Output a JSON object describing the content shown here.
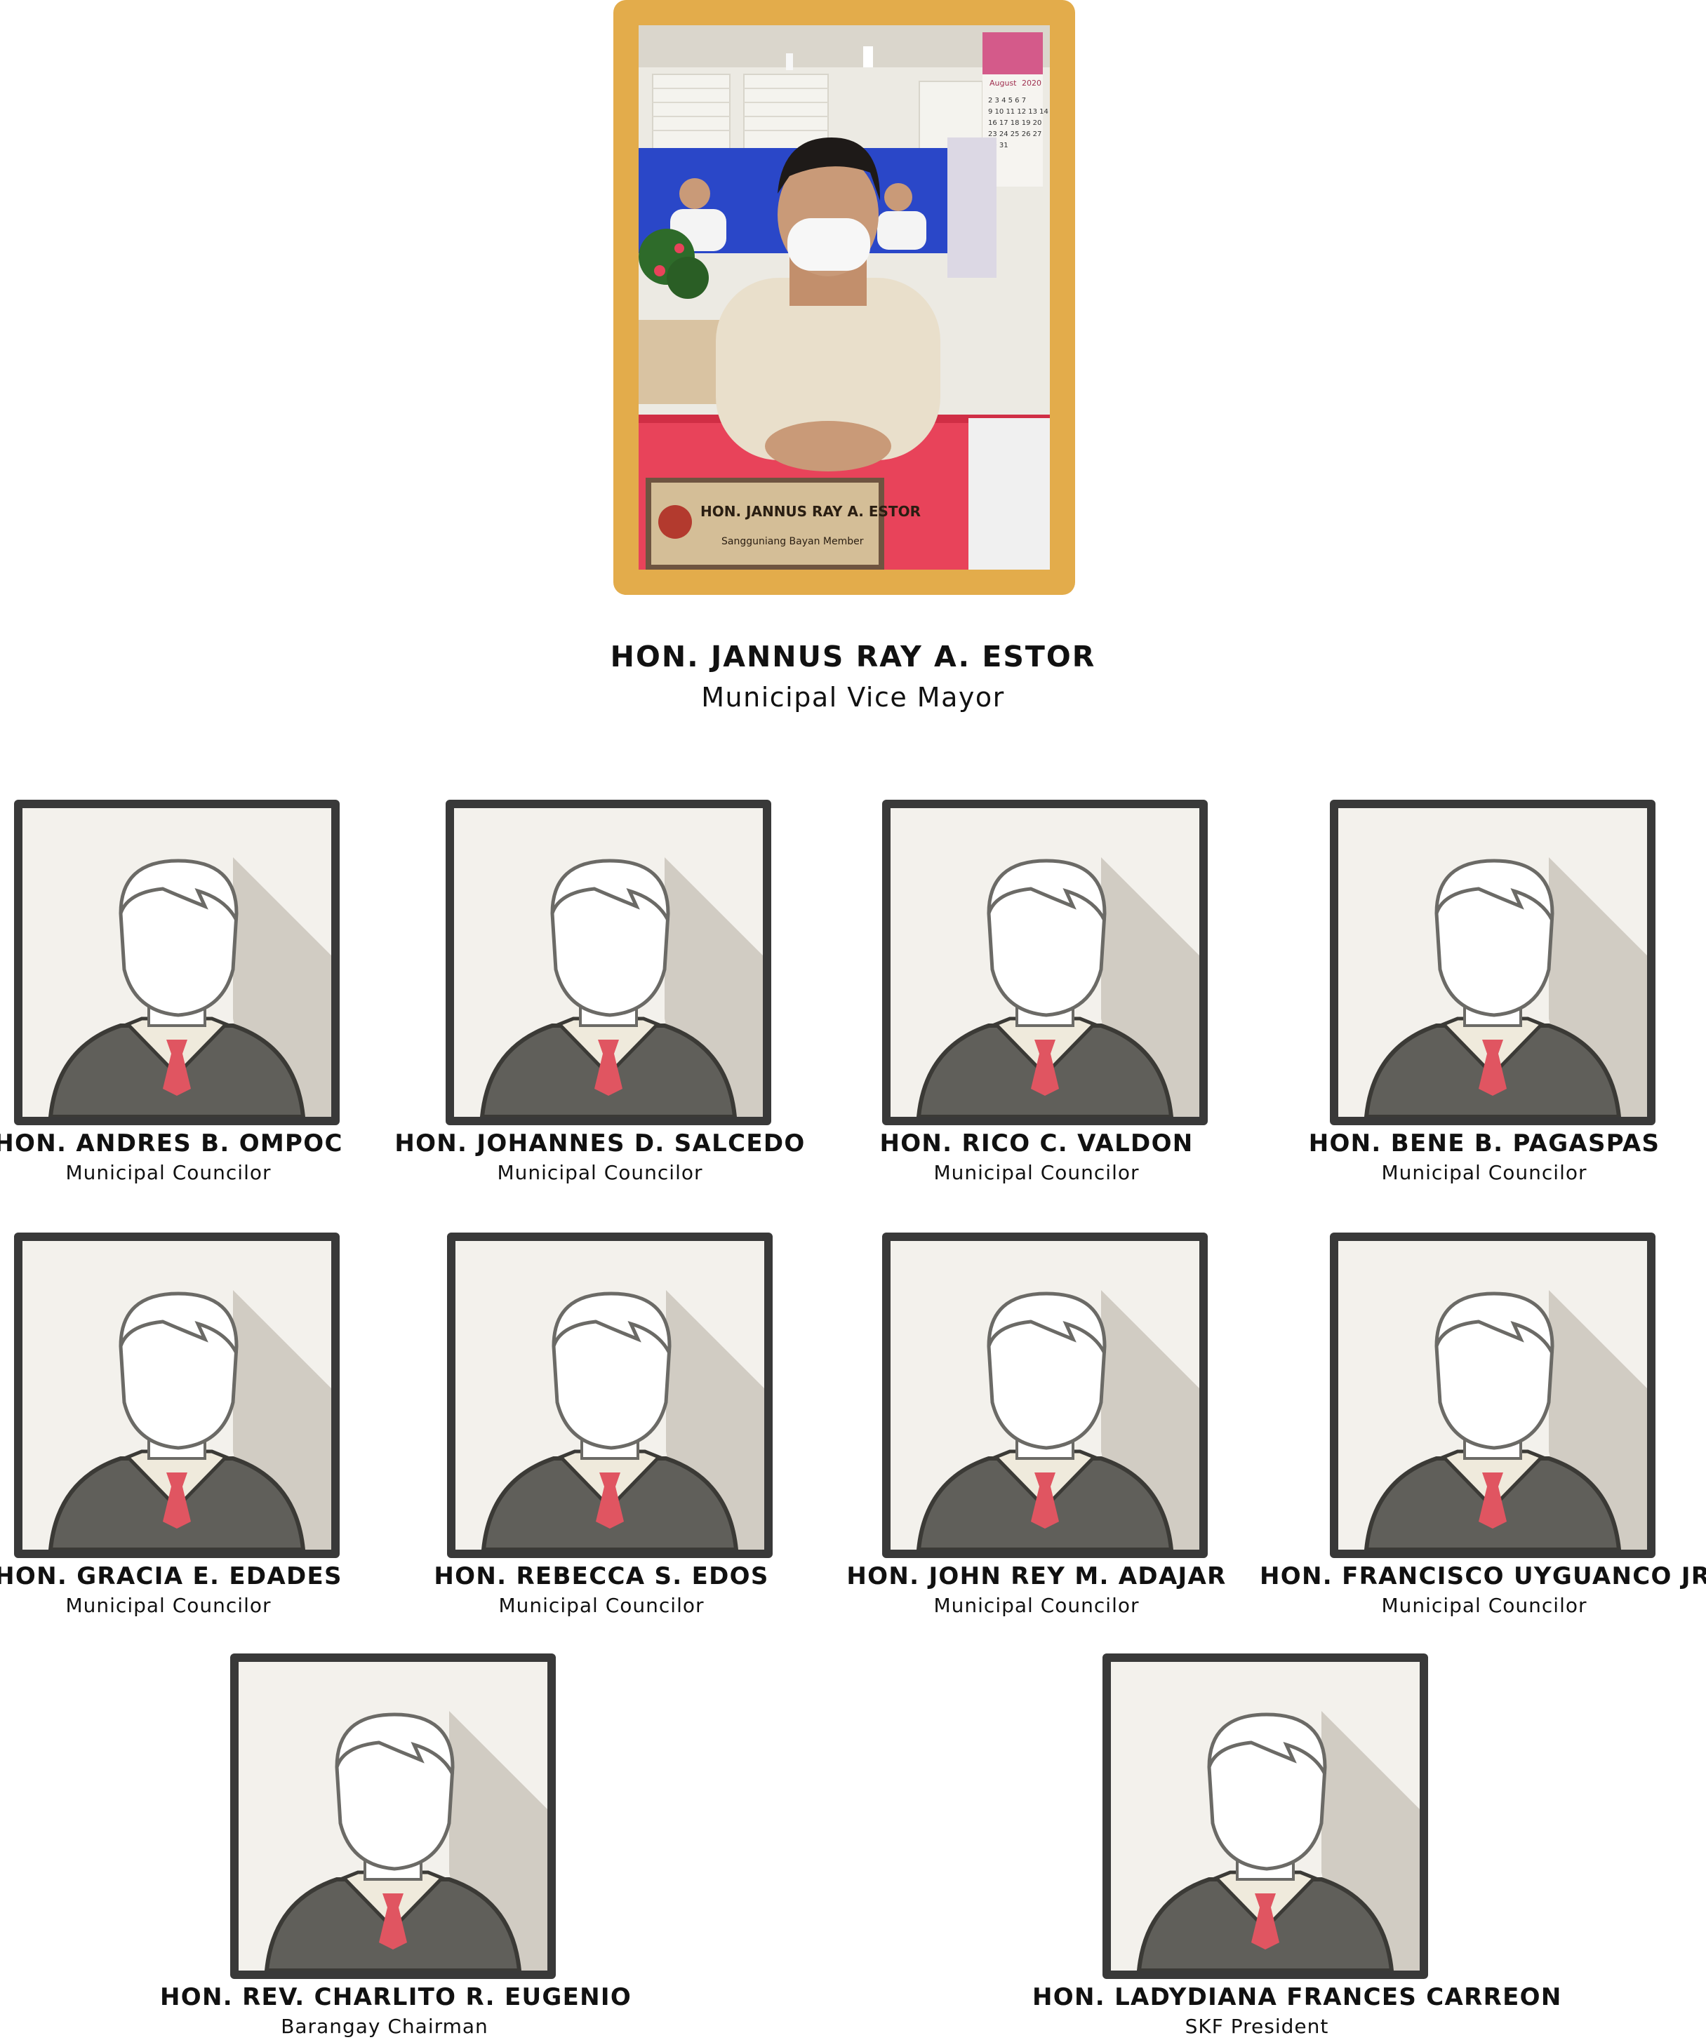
{
  "vice_mayor": {
    "name": "HON. JANNUS RAY A. ESTOR",
    "title": "Municipal Vice Mayor",
    "nameplate_name": "HON. JANNUS RAY A. ESTOR",
    "nameplate_title": "Sangguniang Bayan Member",
    "calendar_month": "August",
    "calendar_year": "2020"
  },
  "colors": {
    "frame_gold": "#E3AC4B",
    "card_border": "#393939",
    "card_bg": "#F3F1EC",
    "shadow": "#D1CCC3",
    "sweater": "#605F5A",
    "tie": "#E05561",
    "collar": "#EFEADC"
  },
  "placeholder_icon": "default-avatar-icon",
  "members": [
    {
      "name": "HON. ANDRES B. OMPOC",
      "role": "Municipal Councilor"
    },
    {
      "name": "HON. JOHANNES D. SALCEDO",
      "role": "Municipal Councilor"
    },
    {
      "name": "HON. RICO C. VALDON",
      "role": "Municipal Councilor"
    },
    {
      "name": "HON. BENE B. PAGASPAS",
      "role": "Municipal Councilor"
    },
    {
      "name": "HON. GRACIA E. EDADES",
      "role": "Municipal Councilor"
    },
    {
      "name": "HON. REBECCA S. EDOS",
      "role": "Municipal Councilor"
    },
    {
      "name": "HON. JOHN REY M. ADAJAR",
      "role": "Municipal Councilor"
    },
    {
      "name": "HON. FRANCISCO UYGUANCO JR.",
      "role": "Municipal Councilor"
    },
    {
      "name": "HON. REV. CHARLITO R. EUGENIO",
      "role": "Barangay Chairman"
    },
    {
      "name": "HON. LADYDIANA FRANCES CARREON",
      "role": "SKF President"
    }
  ]
}
